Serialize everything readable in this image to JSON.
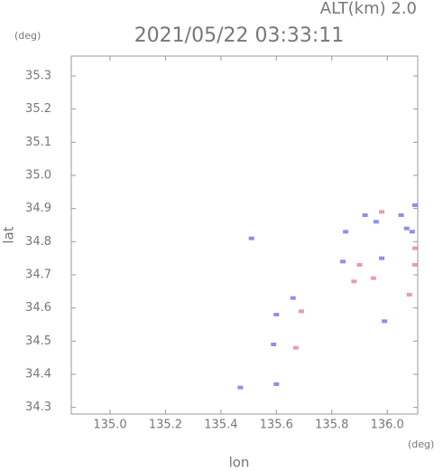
{
  "chart_data": {
    "type": "scatter",
    "annotation": "ALT(km) 2.0",
    "y_unit": "(deg)",
    "title": "2021/05/22 03:33:11",
    "ylabel": "lat",
    "xlabel": "lon",
    "x_unit": "(deg)",
    "xlim": [
      134.86,
      136.11
    ],
    "ylim": [
      34.28,
      35.36
    ],
    "xticks": [
      {
        "value": 135,
        "label": "135.0"
      },
      135.2,
      135.4,
      135.6,
      135.8,
      {
        "value": 136,
        "label": "136.0"
      }
    ],
    "yticks": [
      35.3,
      35.2,
      35.1,
      {
        "value": 35,
        "label": "35.0"
      },
      34.9,
      34.8,
      34.7,
      34.6,
      34.5,
      34.4,
      34.3
    ],
    "series": [
      {
        "color": "#7b7be6",
        "x": [
          135.47,
          135.6,
          135.59,
          135.6,
          135.66,
          135.51,
          135.85,
          135.96,
          136.05,
          136.1,
          136.09,
          135.98,
          135.84,
          135.99,
          136.07,
          135.92
        ],
        "y": [
          34.36,
          34.37,
          34.49,
          34.58,
          34.63,
          34.81,
          34.83,
          34.86,
          34.88,
          34.91,
          34.83,
          34.75,
          34.74,
          34.56,
          34.84,
          34.88
        ]
      },
      {
        "color": "#e8899a",
        "x": [
          135.67,
          135.69,
          135.88,
          135.95,
          136.08,
          136.1,
          135.98,
          136.1,
          135.9
        ],
        "y": [
          34.48,
          34.59,
          34.68,
          34.69,
          34.64,
          34.73,
          34.89,
          34.78,
          34.73
        ]
      }
    ]
  }
}
